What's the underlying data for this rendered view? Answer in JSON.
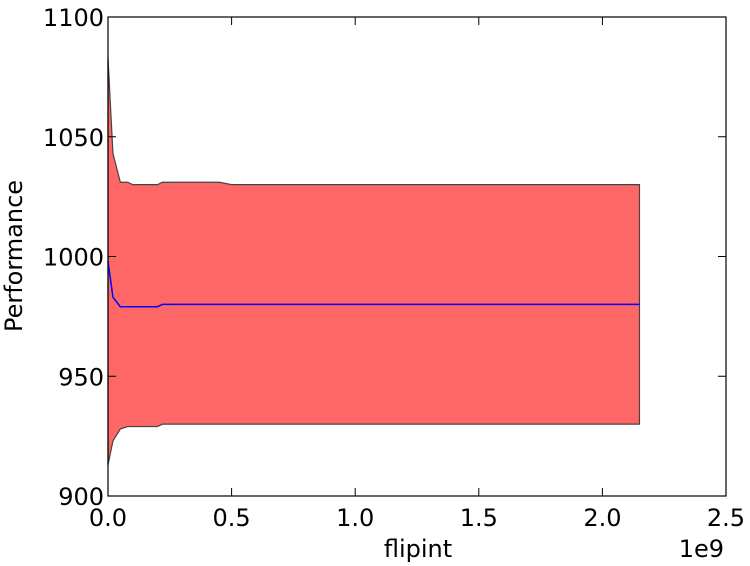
{
  "chart_data": {
    "type": "area",
    "xlabel": "flipint",
    "ylabel": "Performance",
    "x_offset_label": "1e9",
    "xlim": [
      0.0,
      2.5
    ],
    "ylim": [
      900,
      1100
    ],
    "x_ticks": [
      0.0,
      0.5,
      1.0,
      1.5,
      2.0,
      2.5
    ],
    "x_tick_labels": [
      "0.0",
      "0.5",
      "1.0",
      "1.5",
      "2.0",
      "2.5"
    ],
    "y_ticks": [
      900,
      950,
      1000,
      1050,
      1100
    ],
    "y_tick_labels": [
      "900",
      "950",
      "1000",
      "1050",
      "1100"
    ],
    "grid": false,
    "legend": false,
    "colors": {
      "band_fill": "#ff6666",
      "band_edge": "#444444",
      "mean_line": "#0000ff"
    },
    "x": [
      0.0,
      0.02,
      0.05,
      0.08,
      0.1,
      0.15,
      0.2,
      0.22,
      0.3,
      0.4,
      0.45,
      0.5,
      0.6,
      0.8,
      1.0,
      1.2,
      1.4,
      1.5,
      1.6,
      1.8,
      1.9,
      1.95,
      2.0,
      2.1,
      2.15
    ],
    "series": [
      {
        "role": "upper",
        "values": [
          1083,
          1043,
          1031,
          1031,
          1030,
          1030,
          1030,
          1031,
          1031,
          1031,
          1031,
          1030,
          1030,
          1030,
          1030,
          1030,
          1030,
          1030,
          1030,
          1030,
          1030,
          1030,
          1030,
          1030,
          1030
        ]
      },
      {
        "role": "mean",
        "values": [
          998,
          983,
          979,
          979,
          979,
          979,
          979,
          980,
          980,
          980,
          980,
          980,
          980,
          980,
          980,
          980,
          980,
          980,
          980,
          980,
          980,
          980,
          980,
          980,
          980
        ]
      },
      {
        "role": "lower",
        "values": [
          913,
          923,
          928,
          929,
          929,
          929,
          929,
          930,
          930,
          930,
          930,
          930,
          930,
          930,
          930,
          930,
          930,
          930,
          930,
          930,
          930,
          930,
          930,
          930,
          930
        ]
      }
    ]
  }
}
